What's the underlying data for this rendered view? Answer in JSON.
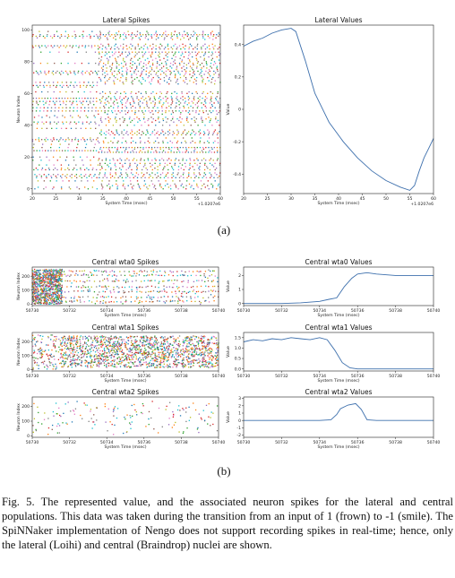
{
  "figure": {
    "label_a": "(a)",
    "label_b": "(b)",
    "caption": "Fig. 5.  The represented value, and the associated neuron spikes for the lateral and central populations. This data was taken during the transition from an input of 1 (frown) to -1 (smile). The SpiNNaker implementation of Nengo does not support recording spikes in real-time; hence, only the lateral (Loihi) and central (Braindrop) nuclei are shown."
  },
  "chart_data": [
    {
      "id": "lateral-spikes",
      "type": "scatter",
      "title": "Lateral Spikes",
      "xlabel": "System Time (msec)",
      "ylabel": "Neuron Index",
      "x_offset_label": "+1.0207e6",
      "xlim": [
        20,
        60
      ],
      "ylim": [
        -3,
        103
      ],
      "xticks": [
        20,
        25,
        30,
        35,
        40,
        45,
        50,
        55,
        60
      ],
      "yticks": [
        0,
        20,
        40,
        60,
        80,
        100
      ],
      "xtick_labels": [
        "20",
        "25",
        "30",
        "35",
        "40",
        "45",
        "50",
        "55",
        "60"
      ],
      "ytick_labels": [
        "0",
        "20",
        "40",
        "60",
        "80",
        "100"
      ],
      "neurons": 100,
      "phases": [
        {
          "x_start": 20,
          "x_end": 34,
          "active_fraction": 0.55
        },
        {
          "x_start": 34,
          "x_end": 60,
          "active_fraction": 0.8
        }
      ]
    },
    {
      "id": "lateral-values",
      "type": "line",
      "title": "Lateral Values",
      "xlabel": "System Time (msec)",
      "ylabel": "Value",
      "x_offset_label": "+1.0207e6",
      "xlim": [
        20,
        60
      ],
      "ylim": [
        -0.52,
        0.52
      ],
      "xticks": [
        20,
        25,
        30,
        35,
        40,
        45,
        50,
        55,
        60
      ],
      "yticks": [
        -0.4,
        -0.2,
        0,
        0.2,
        0.4
      ],
      "xtick_labels": [
        "20",
        "25",
        "30",
        "35",
        "40",
        "45",
        "50",
        "55",
        "60"
      ],
      "ytick_labels": [
        "-0.4",
        "-0.2",
        "0",
        "0.2",
        "0.4"
      ],
      "x": [
        20,
        22,
        24,
        26,
        28,
        30,
        31,
        33,
        35,
        38,
        41,
        44,
        47,
        50,
        53,
        55,
        56,
        57,
        58,
        59,
        60
      ],
      "y": [
        0.39,
        0.42,
        0.44,
        0.47,
        0.49,
        0.5,
        0.48,
        0.3,
        0.1,
        -0.08,
        -0.2,
        -0.3,
        -0.38,
        -0.44,
        -0.48,
        -0.5,
        -0.47,
        -0.38,
        -0.3,
        -0.24,
        -0.18
      ]
    },
    {
      "id": "wta0-spikes",
      "type": "scatter",
      "title": "Central wta0 Spikes",
      "xlabel": "System Time (msec)",
      "ylabel": "Neuron Index",
      "xlim": [
        50730,
        50740
      ],
      "ylim": [
        -10,
        265
      ],
      "xticks": [
        50730,
        50732,
        50734,
        50736,
        50738,
        50740
      ],
      "yticks": [
        0,
        100,
        200
      ],
      "xtick_labels": [
        "50730",
        "50732",
        "50734",
        "50736",
        "50738",
        "50740"
      ],
      "ytick_labels": [
        "0",
        "100",
        "200"
      ],
      "dense_band": {
        "x_start": 50730,
        "x_end": 50731.6
      },
      "level_bands": [
        20,
        50,
        90,
        125,
        165,
        205,
        235
      ]
    },
    {
      "id": "wta0-values",
      "type": "line",
      "title": "Central wta0 Values",
      "xlabel": "System Time (msec)",
      "ylabel": "Value",
      "xlim": [
        50730,
        50740
      ],
      "ylim": [
        -0.15,
        2.6
      ],
      "xticks": [
        50730,
        50732,
        50734,
        50736,
        50738,
        50740
      ],
      "yticks": [
        0,
        1,
        2
      ],
      "xtick_labels": [
        "50730",
        "50732",
        "50734",
        "50736",
        "50738",
        "50740"
      ],
      "ytick_labels": [
        "0",
        "1",
        "2"
      ],
      "x": [
        50730,
        50731,
        50732,
        50733,
        50734,
        50734.5,
        50734.9,
        50735.3,
        50735.7,
        50736,
        50736.5,
        50737,
        50738,
        50739,
        50740
      ],
      "y": [
        0,
        0,
        0,
        0.05,
        0.15,
        0.3,
        0.4,
        1.2,
        1.8,
        2.1,
        2.2,
        2.1,
        2.0,
        2.0,
        2.0
      ]
    },
    {
      "id": "wta1-spikes",
      "type": "scatter",
      "title": "Central wta1 Spikes",
      "xlabel": "System Time (msec)",
      "ylabel": "Neuron Index",
      "xlim": [
        50730,
        50740
      ],
      "ylim": [
        -10,
        265
      ],
      "xticks": [
        50730,
        50732,
        50734,
        50736,
        50738,
        50740
      ],
      "yticks": [
        0,
        100,
        200
      ],
      "xtick_labels": [
        "50730",
        "50732",
        "50734",
        "50736",
        "50738",
        "50740"
      ],
      "ytick_labels": [
        "0",
        "100",
        "200"
      ],
      "dense_band": {
        "x_start": 50731.5,
        "x_end": 50740
      }
    },
    {
      "id": "wta1-values",
      "type": "line",
      "title": "Central wta1 Values",
      "xlabel": "System Time (msec)",
      "ylabel": "Value",
      "xlim": [
        50730,
        50740
      ],
      "ylim": [
        -0.1,
        1.75
      ],
      "xticks": [
        50730,
        50732,
        50734,
        50736,
        50738,
        50740
      ],
      "yticks": [
        0,
        0.5,
        1.0,
        1.5
      ],
      "xtick_labels": [
        "50730",
        "50732",
        "50734",
        "50736",
        "50738",
        "50740"
      ],
      "ytick_labels": [
        "0.0",
        "0.5",
        "1.0",
        "1.5"
      ],
      "x": [
        50730,
        50730.5,
        50731,
        50731.5,
        50732,
        50732.5,
        50733,
        50733.5,
        50734,
        50734.4,
        50734.8,
        50735.2,
        50735.6,
        50736,
        50737,
        50738,
        50739,
        50740
      ],
      "y": [
        1.3,
        1.4,
        1.35,
        1.45,
        1.4,
        1.5,
        1.45,
        1.4,
        1.5,
        1.4,
        0.9,
        0.3,
        0.05,
        0,
        0,
        0,
        0,
        0
      ]
    },
    {
      "id": "wta2-spikes",
      "type": "scatter",
      "title": "Central wta2 Spikes",
      "xlabel": "System Time (msec)",
      "ylabel": "Neuron Index",
      "xlim": [
        50730,
        50740
      ],
      "ylim": [
        -10,
        265
      ],
      "xticks": [
        50730,
        50732,
        50734,
        50736,
        50738,
        50740
      ],
      "yticks": [
        0,
        100,
        200
      ],
      "xtick_labels": [
        "50730",
        "50732",
        "50734",
        "50736",
        "50738",
        "50740"
      ],
      "ytick_labels": [
        "0",
        "100",
        "200"
      ]
    },
    {
      "id": "wta2-values",
      "type": "line",
      "title": "Central wta2 Values",
      "xlabel": "System Time (msec)",
      "ylabel": "Value",
      "xlim": [
        50730,
        50740
      ],
      "ylim": [
        -2.3,
        3.2
      ],
      "xticks": [
        50730,
        50732,
        50734,
        50736,
        50738,
        50740
      ],
      "yticks": [
        -2,
        -1,
        0,
        1,
        2,
        3
      ],
      "xtick_labels": [
        "50730",
        "50732",
        "50734",
        "50736",
        "50738",
        "50740"
      ],
      "ytick_labels": [
        "-2",
        "-1",
        "0",
        "1",
        "2",
        "3"
      ],
      "x": [
        50730,
        50732,
        50734,
        50734.6,
        50734.9,
        50735.1,
        50735.5,
        50735.9,
        50736.2,
        50736.5,
        50737,
        50738,
        50739,
        50740
      ],
      "y": [
        0,
        0,
        0,
        0.1,
        0.8,
        1.6,
        2.1,
        2.3,
        1.5,
        0.1,
        0,
        0,
        0,
        0
      ]
    }
  ]
}
